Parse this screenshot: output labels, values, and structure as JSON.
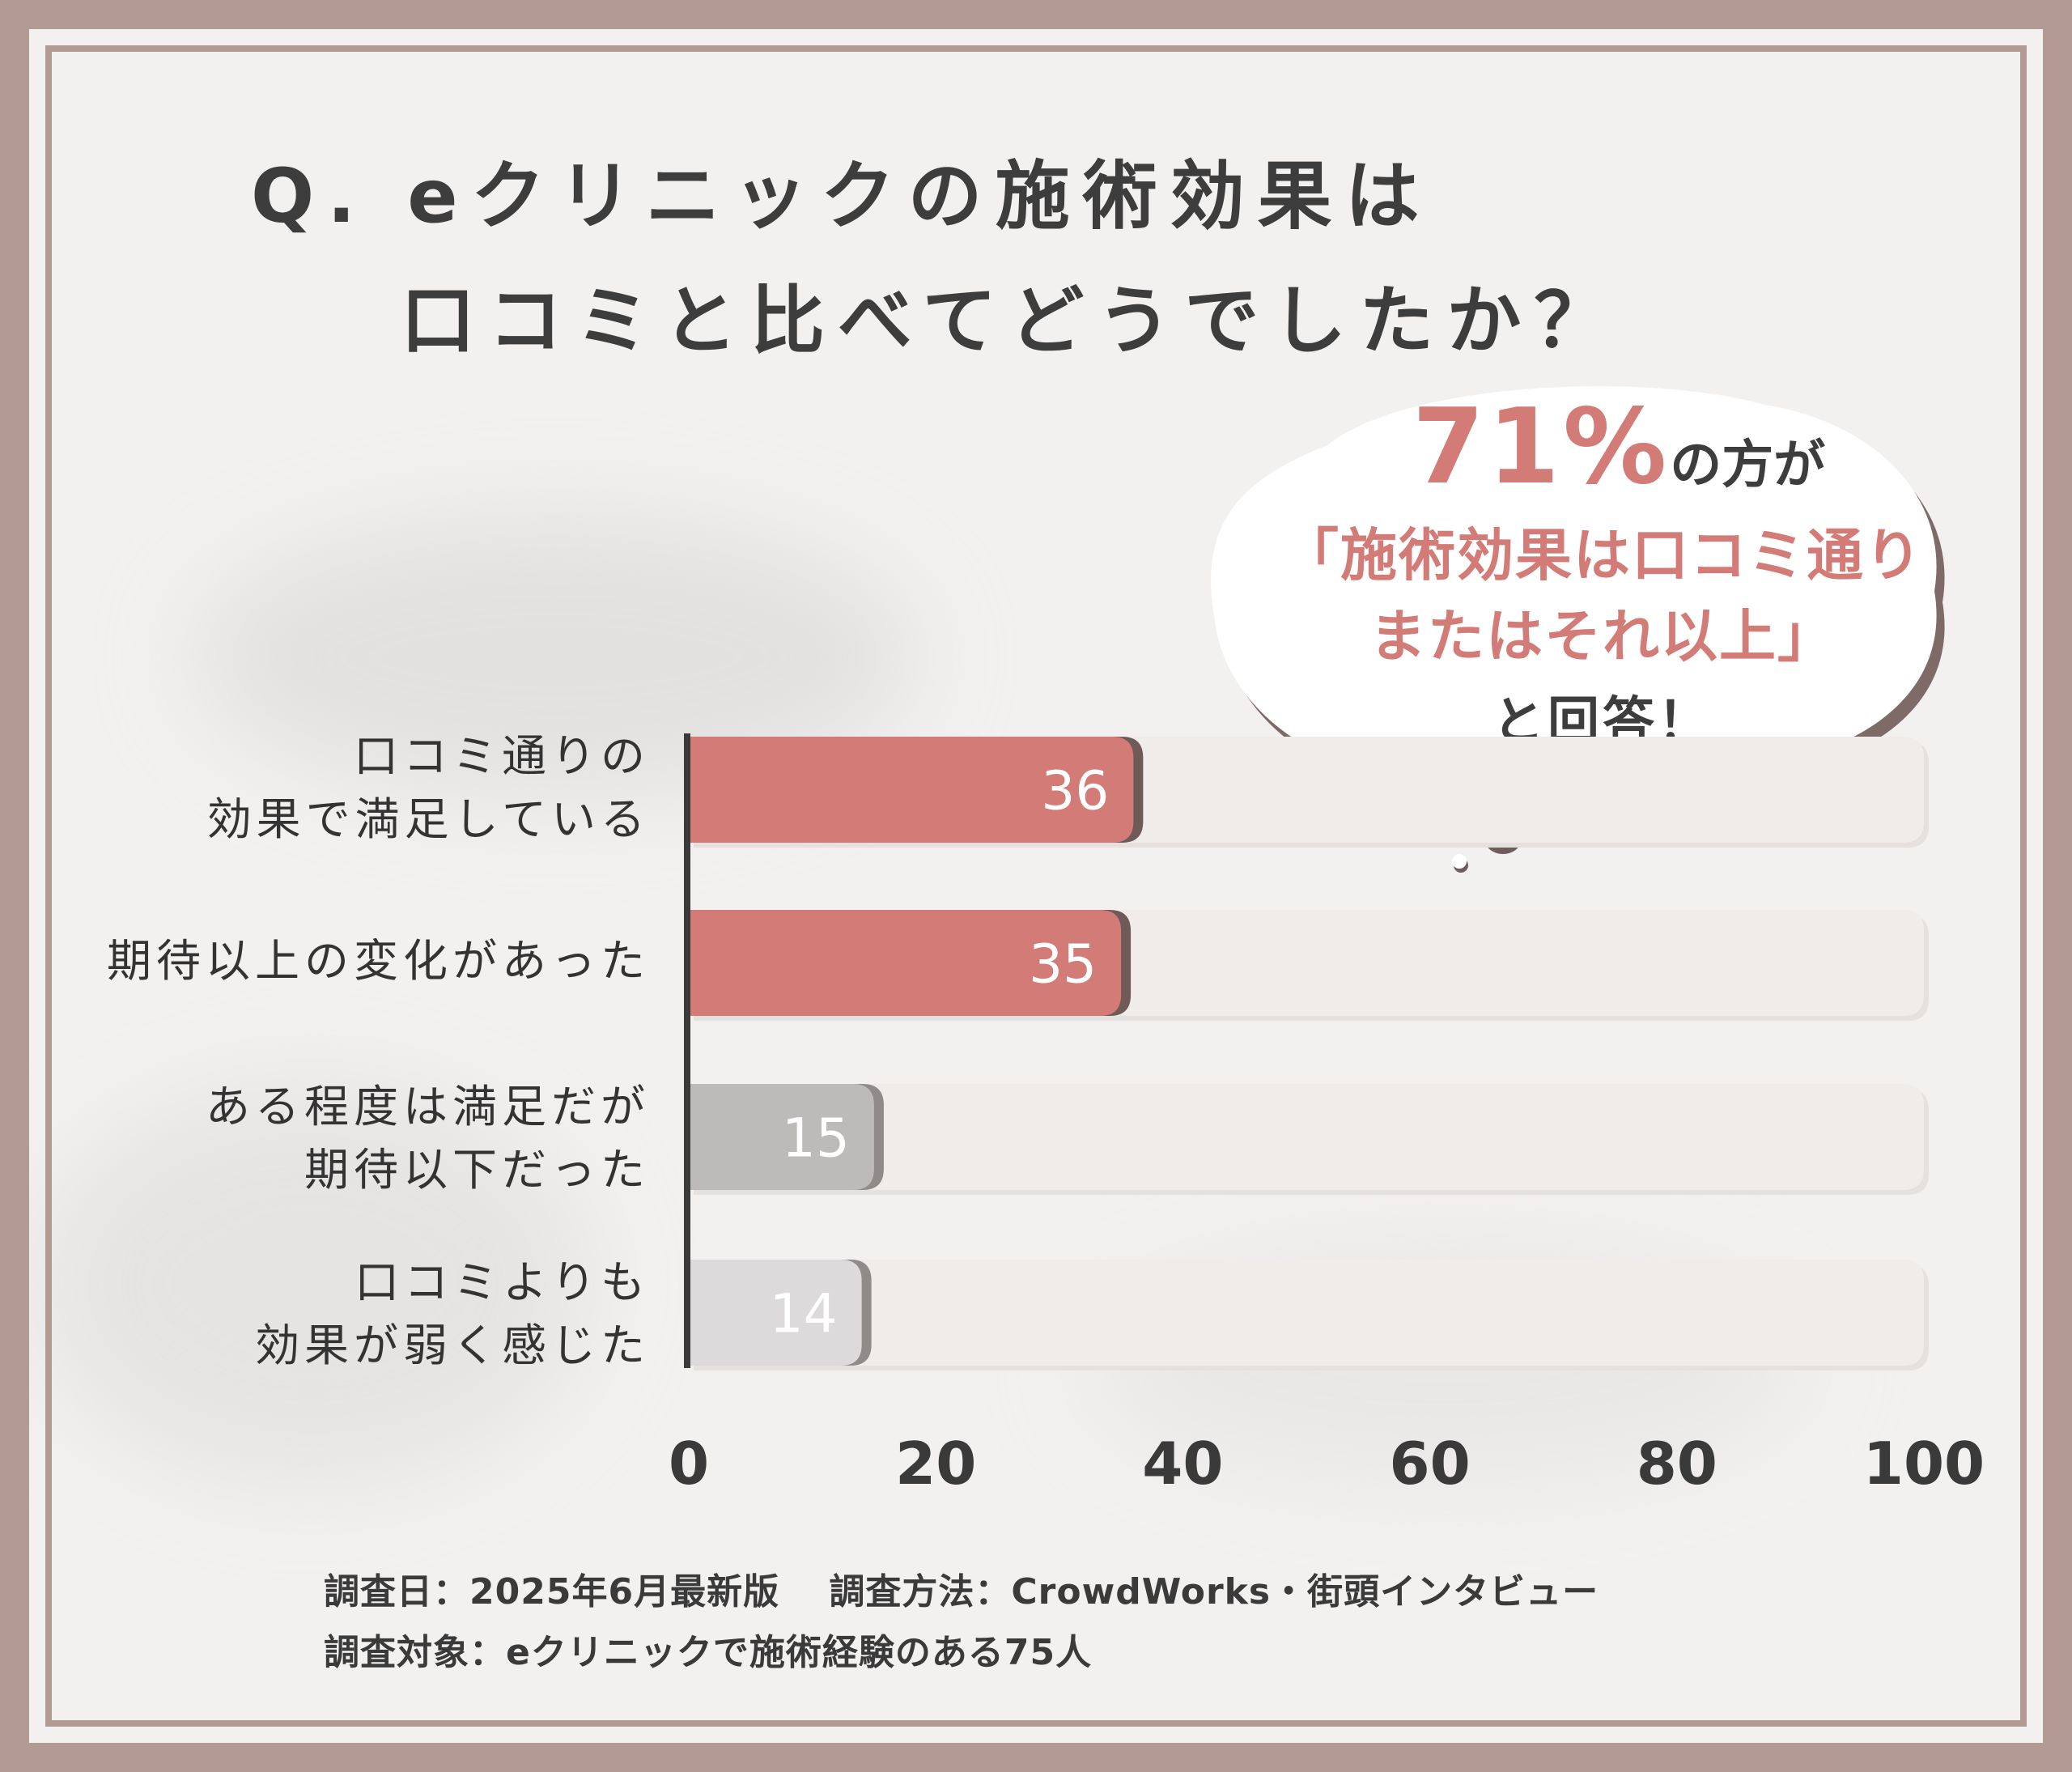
{
  "title": {
    "line1": "Q. eクリニックの施術効果は",
    "line2": "口コミと比べてどうでしたか？"
  },
  "callout": {
    "percent": "71%",
    "suffix": "の方が",
    "quote_line1": "「施術効果は口コミ通り",
    "quote_line2": "またはそれ以上」",
    "tail": "と回答！"
  },
  "chart_data": {
    "type": "bar",
    "orientation": "horizontal",
    "categories": [
      [
        "口コミ通りの",
        "効果で満足している"
      ],
      [
        "期待以上の変化があった"
      ],
      [
        "ある程度は満足だが",
        "期待以下だった"
      ],
      [
        "口コミよりも",
        "効果が弱く感じた"
      ]
    ],
    "values": [
      36,
      35,
      15,
      14
    ],
    "xlim": [
      0,
      100
    ],
    "x_ticks": [
      "0",
      "20",
      "40",
      "60",
      "80",
      "100"
    ],
    "bar_colors": [
      "#d27b77",
      "#d27b77",
      "#bdbaba",
      "#dcdada"
    ],
    "track_color": "#efecea",
    "grid": false
  },
  "footer": {
    "line1": "調査日：2025年6月最新版　 調査方法：CrowdWorks・街頭インタビュー",
    "line2": "調査対象：eクリニックで施術経験のある75人"
  },
  "colors": {
    "frame": "#b39b94",
    "accent": "#d27b77",
    "text": "#3d3d3d"
  }
}
